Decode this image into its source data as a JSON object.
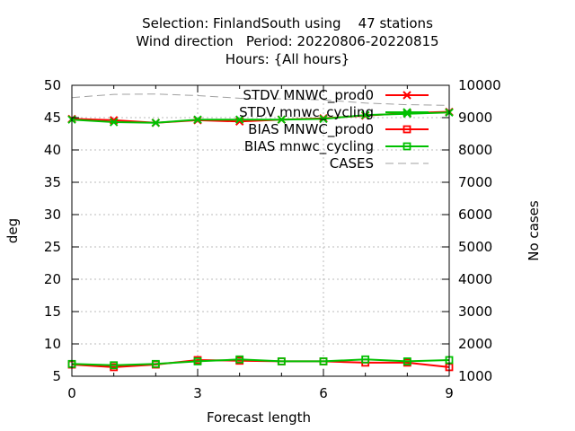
{
  "title_lines": [
    "Selection: FinlandSouth using    47 stations",
    "Wind direction   Period: 20220806-20220815",
    "Hours: {All hours}"
  ],
  "chart_data": {
    "type": "line",
    "xlabel": "Forecast length",
    "ylabel": "deg",
    "y2label": "No cases",
    "xlim": [
      0,
      9
    ],
    "ylim": [
      5,
      50
    ],
    "y2lim": [
      1000,
      10000
    ],
    "xticks": [
      0,
      3,
      6,
      9
    ],
    "yticks": [
      5,
      10,
      15,
      20,
      25,
      30,
      35,
      40,
      45,
      50
    ],
    "y2ticks": [
      1000,
      2000,
      3000,
      4000,
      5000,
      6000,
      7000,
      8000,
      9000,
      10000
    ],
    "grid": true,
    "legend_position": "top-right",
    "x": [
      0,
      1,
      2,
      3,
      4,
      5,
      6,
      7,
      8,
      9
    ],
    "series": [
      {
        "name": "STDV MNWC_prod0",
        "axis": "y1",
        "color": "#ff0000",
        "marker": "x",
        "dash": "solid",
        "values": [
          44.8,
          44.6,
          44.2,
          44.6,
          44.4,
          44.7,
          44.9,
          45.3,
          45.7,
          45.9
        ]
      },
      {
        "name": "STDV mnwc_cycling",
        "axis": "y1",
        "color": "#00c000",
        "marker": "x",
        "dash": "solid",
        "values": [
          44.7,
          44.3,
          44.2,
          44.7,
          44.7,
          44.7,
          44.8,
          45.4,
          45.6,
          45.8
        ]
      },
      {
        "name": "BIAS MNWC_prod0",
        "axis": "y1",
        "color": "#ff0000",
        "marker": "square",
        "dash": "solid",
        "values": [
          6.8,
          6.4,
          6.8,
          7.5,
          7.4,
          7.3,
          7.3,
          7.1,
          7.1,
          6.4
        ]
      },
      {
        "name": "BIAS mnwc_cycling",
        "axis": "y1",
        "color": "#00c000",
        "marker": "square",
        "dash": "solid",
        "values": [
          6.9,
          6.7,
          6.9,
          7.3,
          7.6,
          7.3,
          7.3,
          7.6,
          7.3,
          7.5
        ]
      },
      {
        "name": "CASES",
        "axis": "y2",
        "color": "#a0a0a0",
        "marker": "none",
        "dash": "dashed",
        "values": [
          9620,
          9720,
          9730,
          9680,
          9600,
          9580,
          9550,
          9450,
          9400,
          9380
        ]
      }
    ]
  }
}
